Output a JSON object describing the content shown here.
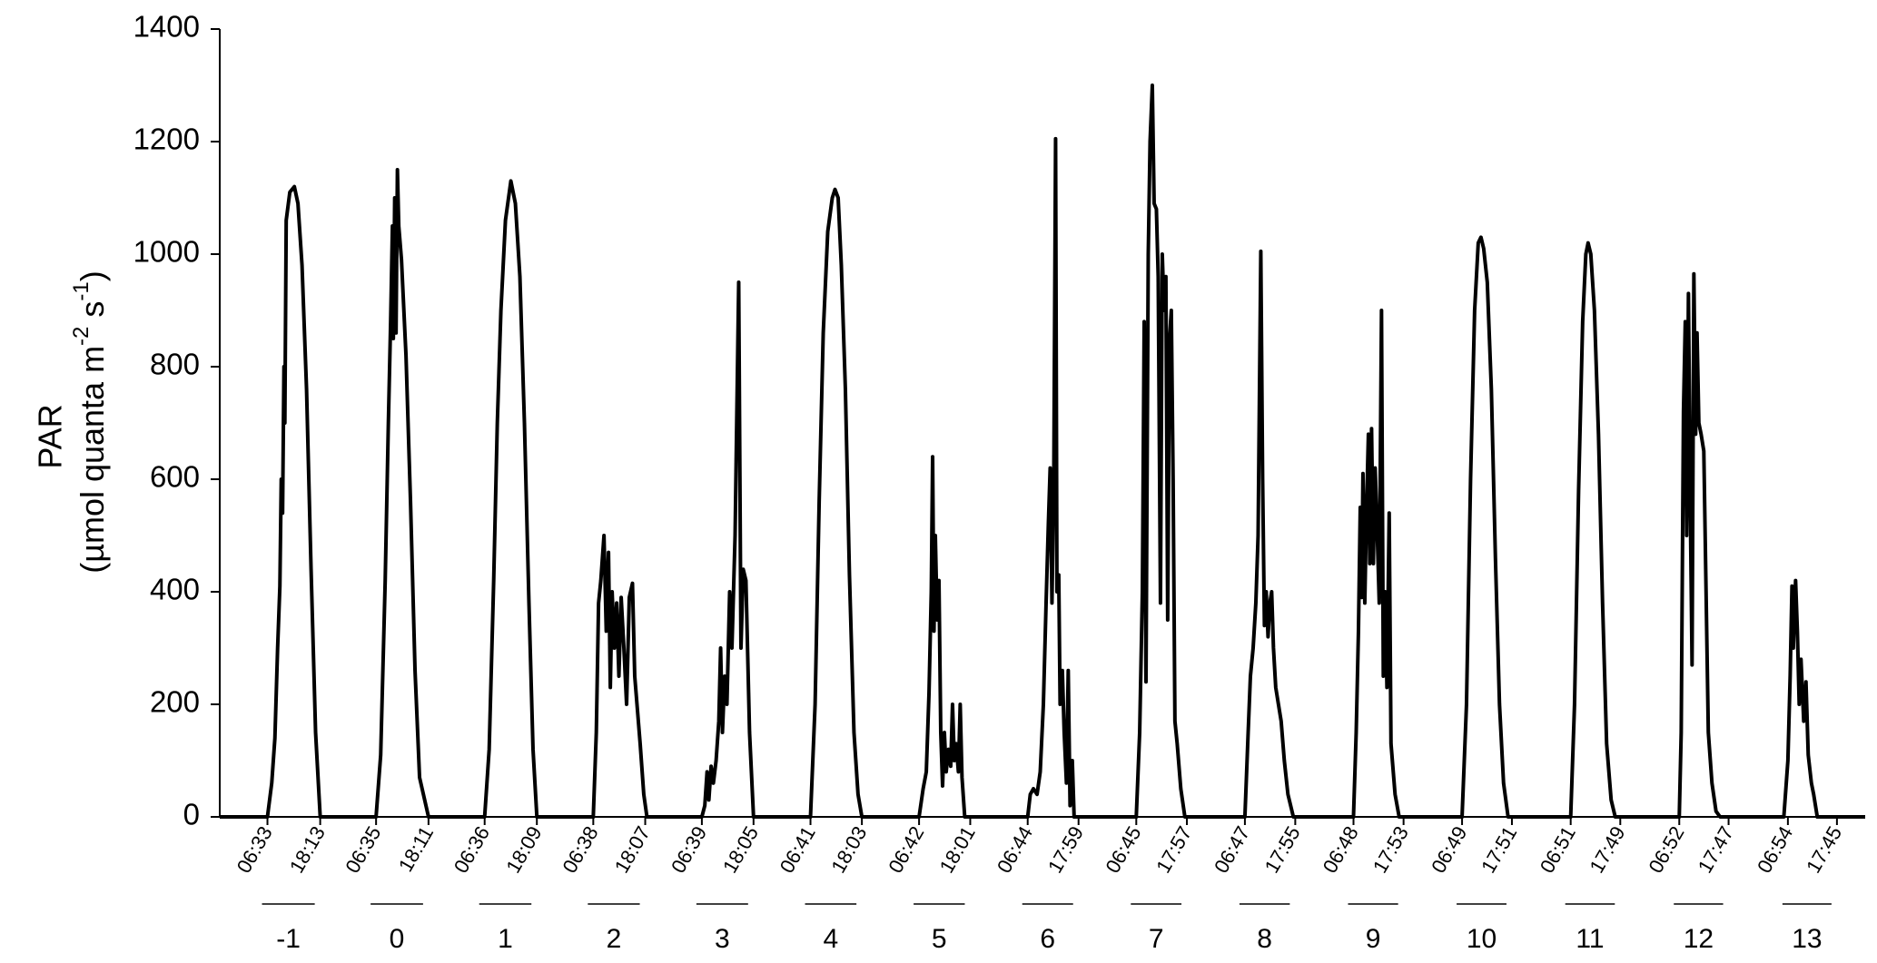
{
  "chart_data": {
    "type": "line",
    "y_label": {
      "line1": "PAR",
      "line2": [
        "(µmol quanta m",
        "-2",
        " s",
        "-1",
        ")"
      ]
    },
    "color": "#000000",
    "xlim": [
      -4,
      360
    ],
    "ylim": [
      0,
      1400
    ],
    "yticks": [
      0,
      200,
      400,
      600,
      800,
      1000,
      1200,
      1400
    ],
    "xticks": [
      {
        "value": 6.55,
        "label": "06:33"
      },
      {
        "value": 18.22,
        "label": "18:13"
      },
      {
        "value": 30.58,
        "label": "06:35"
      },
      {
        "value": 42.18,
        "label": "18:11"
      },
      {
        "value": 54.6,
        "label": "06:36"
      },
      {
        "value": 66.15,
        "label": "18:09"
      },
      {
        "value": 78.63,
        "label": "06:38"
      },
      {
        "value": 90.12,
        "label": "18:07"
      },
      {
        "value": 102.65,
        "label": "06:39"
      },
      {
        "value": 114.08,
        "label": "18:05"
      },
      {
        "value": 126.68,
        "label": "06:41"
      },
      {
        "value": 138.05,
        "label": "18:03"
      },
      {
        "value": 150.7,
        "label": "06:42"
      },
      {
        "value": 162.02,
        "label": "18:01"
      },
      {
        "value": 174.73,
        "label": "06:44"
      },
      {
        "value": 185.98,
        "label": "17:59"
      },
      {
        "value": 198.75,
        "label": "06:45"
      },
      {
        "value": 209.95,
        "label": "17:57"
      },
      {
        "value": 222.78,
        "label": "06:47"
      },
      {
        "value": 233.92,
        "label": "17:55"
      },
      {
        "value": 246.8,
        "label": "06:48"
      },
      {
        "value": 257.88,
        "label": "17:53"
      },
      {
        "value": 270.82,
        "label": "06:49"
      },
      {
        "value": 281.85,
        "label": "17:51"
      },
      {
        "value": 294.85,
        "label": "06:51"
      },
      {
        "value": 305.82,
        "label": "17:49"
      },
      {
        "value": 318.87,
        "label": "06:52"
      },
      {
        "value": 329.78,
        "label": "17:47"
      },
      {
        "value": 342.9,
        "label": "06:54"
      },
      {
        "value": 353.75,
        "label": "17:45"
      }
    ],
    "days": [
      "-1",
      "0",
      "1",
      "2",
      "3",
      "4",
      "5",
      "6",
      "7",
      "8",
      "9",
      "10",
      "11",
      "12",
      "13"
    ],
    "x": [
      -4,
      6.55,
      7.5,
      8.2,
      8.8,
      9.3,
      9.6,
      9.9,
      10.2,
      10.4,
      10.7,
      11.5,
      12.5,
      13.3,
      14.2,
      15.2,
      16.2,
      17.2,
      18.22,
      30.58,
      31.6,
      32.6,
      33.3,
      33.8,
      34.2,
      34.4,
      34.7,
      35.0,
      35.3,
      35.6,
      36.2,
      37.2,
      38.2,
      39.2,
      40.2,
      42.18,
      54.6,
      55.6,
      56.6,
      57.4,
      58.2,
      59.2,
      60.4,
      61.4,
      62.4,
      63.4,
      64.4,
      65.3,
      66.15,
      78.63,
      79.3,
      79.8,
      80.3,
      81.0,
      81.5,
      82.0,
      82.4,
      82.8,
      83.3,
      83.8,
      84.3,
      84.8,
      85.4,
      86.0,
      86.6,
      87.3,
      87.8,
      88.3,
      89.0,
      89.8,
      90.5,
      102.65,
      103.3,
      103.8,
      104.2,
      104.7,
      105.2,
      105.8,
      106.4,
      106.8,
      107.2,
      107.7,
      108.2,
      108.8,
      109.3,
      110.0,
      110.8,
      111.3,
      111.8,
      112.4,
      113.2,
      114.08,
      126.68,
      127.7,
      128.6,
      129.5,
      130.5,
      131.5,
      132.1,
      132.8,
      133.5,
      134.4,
      135.3,
      136.3,
      137.2,
      138.05,
      150.7,
      151.6,
      152.3,
      152.9,
      153.4,
      153.7,
      154.0,
      154.3,
      154.7,
      155.1,
      155.5,
      155.9,
      156.3,
      156.7,
      157.2,
      157.7,
      158.1,
      158.5,
      158.9,
      159.4,
      159.8,
      160.2,
      160.8,
      174.73,
      175.3,
      176.0,
      176.8,
      177.5,
      178.2,
      178.8,
      179.3,
      179.7,
      180.1,
      180.5,
      180.9,
      181.2,
      181.6,
      181.9,
      182.4,
      182.8,
      183.3,
      183.7,
      184.1,
      184.6,
      185.0,
      198.75,
      199.5,
      200.1,
      200.5,
      200.9,
      201.4,
      201.8,
      202.3,
      202.7,
      203.2,
      203.6,
      204.1,
      204.5,
      204.9,
      205.3,
      205.7,
      206.1,
      206.5,
      206.9,
      207.3,
      207.8,
      208.6,
      209.5,
      222.78,
      223.5,
      224.0,
      224.6,
      225.2,
      225.7,
      226.3,
      226.7,
      227.1,
      227.5,
      227.9,
      228.3,
      228.7,
      229.1,
      229.6,
      230.2,
      230.8,
      231.5,
      232.3,
      233.5,
      246.8,
      247.4,
      247.9,
      248.3,
      248.6,
      248.9,
      249.3,
      249.7,
      250.1,
      250.4,
      250.8,
      251.2,
      251.6,
      252.0,
      252.5,
      253.0,
      253.4,
      253.8,
      254.2,
      254.7,
      255.1,
      256.0,
      256.9,
      270.82,
      271.8,
      272.7,
      273.6,
      274.4,
      275.0,
      275.6,
      276.4,
      277.3,
      278.2,
      279.1,
      280.0,
      281.0,
      294.85,
      295.7,
      296.6,
      297.5,
      298.2,
      298.7,
      299.3,
      300.1,
      301.0,
      301.9,
      302.8,
      303.8,
      304.7,
      318.87,
      319.3,
      319.8,
      320.2,
      320.5,
      320.9,
      321.3,
      321.7,
      322.1,
      322.5,
      322.8,
      323.2,
      323.7,
      324.3,
      324.8,
      325.3,
      326.1,
      327.0,
      327.9,
      342.0,
      342.9,
      343.4,
      343.8,
      344.1,
      344.6,
      345.0,
      345.4,
      345.8,
      346.4,
      346.9,
      347.4,
      348.1,
      348.6,
      349.4,
      360
    ],
    "values": [
      0,
      0,
      60,
      140,
      300,
      410,
      600,
      540,
      800,
      700,
      1060,
      1110,
      1120,
      1090,
      980,
      760,
      440,
      150,
      0,
      0,
      110,
      420,
      700,
      880,
      1050,
      850,
      1100,
      860,
      1150,
      1050,
      990,
      820,
      560,
      260,
      70,
      0,
      0,
      120,
      420,
      700,
      900,
      1060,
      1130,
      1090,
      960,
      700,
      380,
      120,
      0,
      0,
      150,
      380,
      420,
      500,
      330,
      470,
      230,
      400,
      300,
      380,
      250,
      390,
      300,
      200,
      390,
      415,
      250,
      200,
      130,
      40,
      0,
      0,
      20,
      80,
      30,
      90,
      60,
      100,
      170,
      300,
      150,
      250,
      200,
      400,
      300,
      500,
      950,
      300,
      440,
      420,
      150,
      0,
      0,
      200,
      560,
      860,
      1040,
      1100,
      1115,
      1100,
      980,
      760,
      430,
      150,
      40,
      0,
      0,
      50,
      80,
      220,
      400,
      640,
      330,
      500,
      350,
      420,
      150,
      55,
      150,
      80,
      120,
      90,
      200,
      100,
      130,
      80,
      200,
      70,
      0,
      0,
      40,
      50,
      40,
      80,
      200,
      380,
      520,
      620,
      380,
      600,
      1205,
      400,
      430,
      200,
      260,
      150,
      60,
      260,
      20,
      100,
      0,
      0,
      150,
      400,
      880,
      240,
      1000,
      1200,
      1300,
      1090,
      1080,
      960,
      380,
      1000,
      900,
      960,
      350,
      850,
      900,
      600,
      170,
      130,
      50,
      0,
      0,
      150,
      250,
      300,
      380,
      500,
      1005,
      600,
      340,
      400,
      320,
      380,
      400,
      300,
      230,
      200,
      170,
      100,
      40,
      0,
      0,
      150,
      330,
      550,
      390,
      610,
      380,
      550,
      680,
      450,
      690,
      450,
      620,
      520,
      380,
      900,
      250,
      400,
      230,
      540,
      130,
      40,
      0,
      0,
      200,
      600,
      900,
      1020,
      1030,
      1010,
      950,
      760,
      460,
      200,
      60,
      0,
      0,
      200,
      580,
      880,
      1000,
      1020,
      1000,
      900,
      680,
      380,
      130,
      30,
      0,
      0,
      150,
      720,
      880,
      500,
      930,
      560,
      270,
      965,
      680,
      860,
      700,
      680,
      650,
      400,
      150,
      60,
      10,
      0,
      0,
      100,
      250,
      410,
      300,
      420,
      330,
      200,
      280,
      170,
      240,
      110,
      60,
      40,
      0,
      0
    ]
  }
}
